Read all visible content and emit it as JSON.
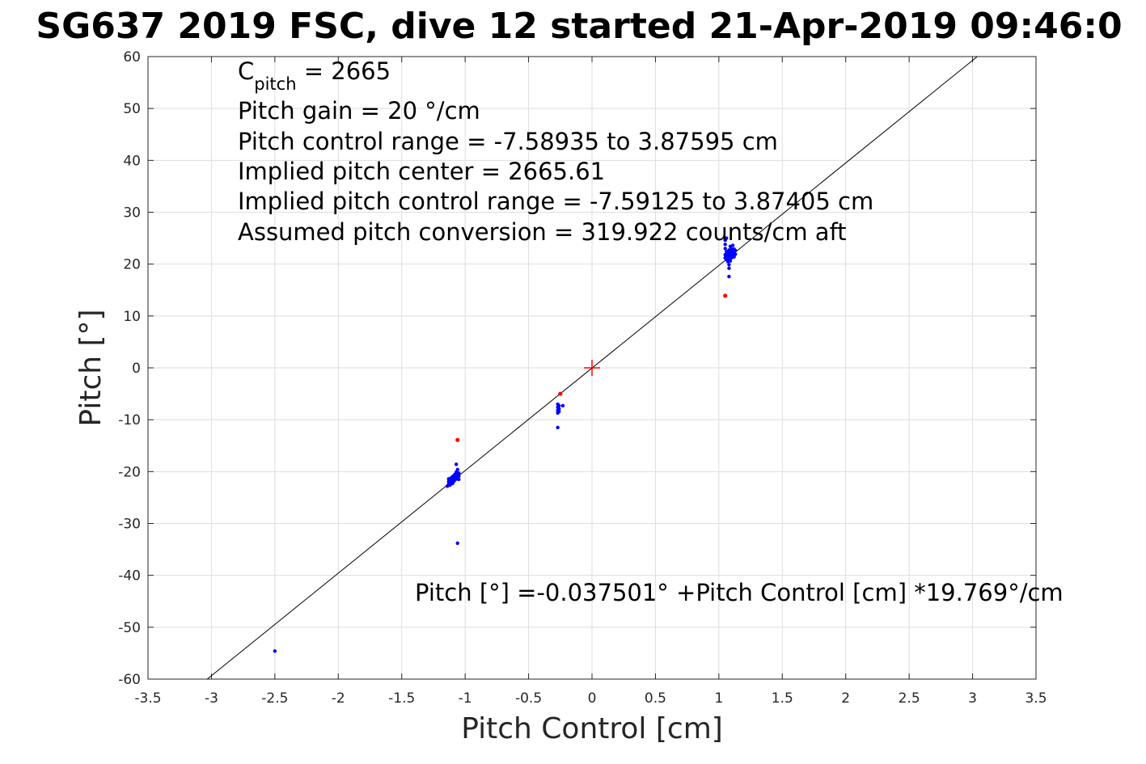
{
  "chart_data": {
    "type": "scatter",
    "title": "SG637 2019 FSC, dive 12 started 21-Apr-2019 09:46:0",
    "xlabel": "Pitch Control [cm]",
    "ylabel": "Pitch [°]",
    "xlim": [
      -3.5,
      3.5
    ],
    "ylim": [
      -60,
      60
    ],
    "grid": true,
    "x_ticks": [
      -3.5,
      -3,
      -2.5,
      -2,
      -1.5,
      -1,
      -0.5,
      0,
      0.5,
      1,
      1.5,
      2,
      2.5,
      3,
      3.5
    ],
    "x_tick_labels": [
      "-3.5",
      "-3",
      "-2.5",
      "-2",
      "-1.5",
      "-1",
      "-0.5",
      "0",
      "0.5",
      "1",
      "1.5",
      "2",
      "2.5",
      "3",
      "3.5"
    ],
    "y_ticks": [
      -60,
      -50,
      -40,
      -30,
      -20,
      -10,
      0,
      10,
      20,
      30,
      40,
      50,
      60
    ],
    "y_tick_labels": [
      "-60",
      "-50",
      "-40",
      "-30",
      "-20",
      "-10",
      "0",
      "10",
      "20",
      "30",
      "40",
      "50",
      "60"
    ],
    "annotations": {
      "cpitch_base": "C",
      "cpitch_sub": "pitch",
      "cpitch_value": " = 2665",
      "lines": [
        "Pitch gain = 20 °/cm",
        "Pitch control range = -7.58935 to 3.87595 cm",
        "Implied pitch center = 2665.61",
        "Implied pitch control range = -7.59125 to 3.87405 cm",
        "Assumed pitch conversion = 319.922 counts/cm aft"
      ],
      "fit_equation": "Pitch [°] =-0.037501° +Pitch Control [cm] *19.769°/cm"
    },
    "fit_line": {
      "intercept": -0.037501,
      "slope": 19.769,
      "color": "#000000"
    },
    "center_marker": {
      "x": 0,
      "y": 0,
      "color": "#ff0000",
      "marker": "+"
    },
    "series": [
      {
        "color": "#0000ff",
        "points": [
          [
            -2.5,
            -54.6
          ],
          [
            -1.06,
            -33.8
          ],
          [
            -0.27,
            -11.5
          ],
          [
            -1.14,
            -22.8
          ],
          [
            -1.13,
            -22.4
          ],
          [
            -1.13,
            -21.9
          ],
          [
            -1.13,
            -21.4
          ],
          [
            -1.12,
            -22.6
          ],
          [
            -1.12,
            -22.0
          ],
          [
            -1.12,
            -21.5
          ],
          [
            -1.11,
            -22.2
          ],
          [
            -1.11,
            -21.7
          ],
          [
            -1.11,
            -21.2
          ],
          [
            -1.1,
            -22.3
          ],
          [
            -1.1,
            -21.6
          ],
          [
            -1.1,
            -21.0
          ],
          [
            -1.09,
            -21.9
          ],
          [
            -1.09,
            -21.3
          ],
          [
            -1.09,
            -20.8
          ],
          [
            -1.08,
            -21.6
          ],
          [
            -1.08,
            -21.1
          ],
          [
            -1.08,
            -20.5
          ],
          [
            -1.07,
            -21.4
          ],
          [
            -1.07,
            -20.7
          ],
          [
            -1.07,
            -20.1
          ],
          [
            -1.07,
            -18.6
          ],
          [
            -1.06,
            -21.0
          ],
          [
            -1.06,
            -20.4
          ],
          [
            -1.06,
            -19.6
          ],
          [
            -1.05,
            -20.9
          ],
          [
            -1.05,
            -20.3
          ],
          [
            -1.05,
            -21.5
          ],
          [
            -0.27,
            -7.0
          ],
          [
            -0.27,
            -7.6
          ],
          [
            -0.27,
            -8.2
          ],
          [
            -0.27,
            -8.7
          ],
          [
            -0.26,
            -7.3
          ],
          [
            -0.26,
            -7.9
          ],
          [
            -0.26,
            -8.4
          ],
          [
            -0.23,
            -7.3
          ],
          [
            1.05,
            24.6
          ],
          [
            1.05,
            23.8
          ],
          [
            1.05,
            23.0
          ],
          [
            1.05,
            21.8
          ],
          [
            1.05,
            21.2
          ],
          [
            1.06,
            22.4
          ],
          [
            1.06,
            20.9
          ],
          [
            1.06,
            21.6
          ],
          [
            1.07,
            22.1
          ],
          [
            1.07,
            21.3
          ],
          [
            1.07,
            20.5
          ],
          [
            1.08,
            22.7
          ],
          [
            1.08,
            21.8
          ],
          [
            1.08,
            20.8
          ],
          [
            1.08,
            19.9
          ],
          [
            1.08,
            19.2
          ],
          [
            1.09,
            23.4
          ],
          [
            1.09,
            22.3
          ],
          [
            1.09,
            21.5
          ],
          [
            1.09,
            20.6
          ],
          [
            1.1,
            22.9
          ],
          [
            1.1,
            22.0
          ],
          [
            1.1,
            21.2
          ],
          [
            1.11,
            23.6
          ],
          [
            1.11,
            22.6
          ],
          [
            1.11,
            21.7
          ],
          [
            1.12,
            22.9
          ],
          [
            1.12,
            22.1
          ],
          [
            1.12,
            21.4
          ],
          [
            1.13,
            22.6
          ],
          [
            1.13,
            21.9
          ],
          [
            1.08,
            17.6
          ],
          [
            1.06,
            25.0
          ]
        ]
      },
      {
        "color": "#ff0000",
        "points": [
          [
            -1.06,
            -13.9
          ],
          [
            -0.25,
            -5.0
          ],
          [
            1.05,
            13.9
          ]
        ]
      }
    ]
  }
}
